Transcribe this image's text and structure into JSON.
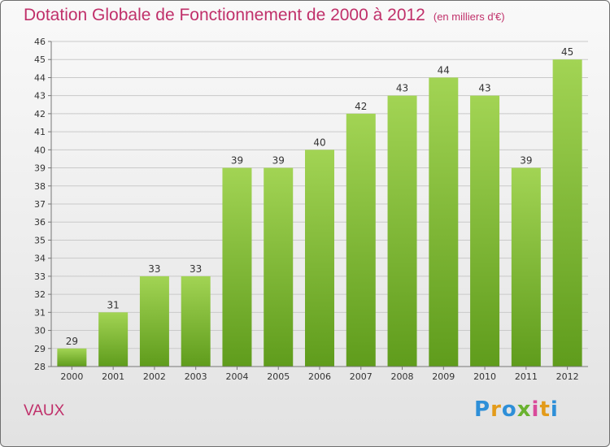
{
  "chart_data": {
    "type": "bar",
    "title": "Dotation Globale de Fonctionnement de 2000 à 2012",
    "unit_note": "(en milliers d'€)",
    "categories": [
      "2000",
      "2001",
      "2002",
      "2003",
      "2004",
      "2005",
      "2006",
      "2007",
      "2008",
      "2009",
      "2010",
      "2011",
      "2012"
    ],
    "values": [
      29,
      31,
      33,
      33,
      39,
      39,
      40,
      42,
      43,
      44,
      43,
      39,
      45
    ],
    "ylim": [
      28,
      46
    ],
    "yticks": [
      28,
      29,
      30,
      31,
      32,
      33,
      34,
      35,
      36,
      37,
      38,
      39,
      40,
      41,
      42,
      43,
      44,
      45,
      46
    ],
    "grid": true,
    "bar_color": "#7dbb38"
  },
  "commune": "VAUX",
  "logo": {
    "brand": "Proxiti"
  }
}
